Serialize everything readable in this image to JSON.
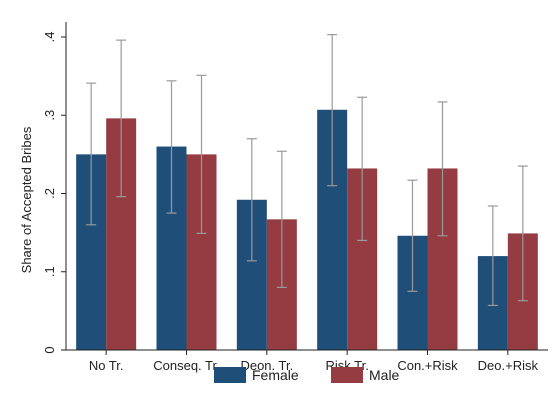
{
  "chart_data": {
    "type": "bar",
    "title": "",
    "xlabel": "",
    "ylabel": "Share of Accepted Bribes",
    "ylim": [
      0,
      0.4
    ],
    "yticks": [
      0,
      0.1,
      0.2,
      0.3,
      0.4
    ],
    "ytick_labels": [
      "0",
      ".1",
      ".2",
      ".3",
      ".4"
    ],
    "grid": false,
    "legend_position": "bottom",
    "categories": [
      "No Tr.",
      "Conseq. Tr.",
      "Deon. Tr.",
      "Risk Tr.",
      "Con.+Risk",
      "Deo.+Risk"
    ],
    "series": [
      {
        "name": "Female",
        "color": "#1f4e79",
        "values": [
          0.25,
          0.26,
          0.192,
          0.307,
          0.146,
          0.12
        ],
        "ci_low": [
          0.16,
          0.175,
          0.114,
          0.21,
          0.075,
          0.057
        ],
        "ci_high": [
          0.341,
          0.344,
          0.27,
          0.403,
          0.217,
          0.184
        ]
      },
      {
        "name": "Male",
        "color": "#943c42",
        "values": [
          0.296,
          0.25,
          0.167,
          0.232,
          0.232,
          0.149
        ],
        "ci_low": [
          0.196,
          0.149,
          0.08,
          0.14,
          0.146,
          0.063
        ],
        "ci_high": [
          0.396,
          0.351,
          0.254,
          0.323,
          0.317,
          0.235
        ]
      }
    ]
  }
}
